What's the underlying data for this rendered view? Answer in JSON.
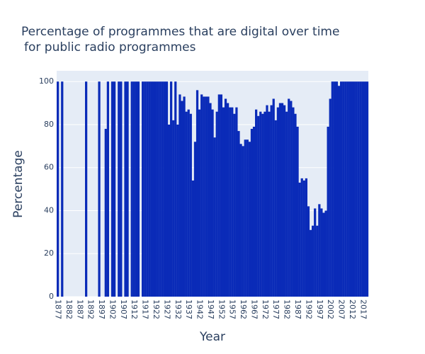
{
  "chart_data": {
    "type": "bar",
    "title": [
      "Percentage of programmes that are digital over time",
      "for public radio programmes"
    ],
    "x_label": "Year",
    "y_label": "Percentage",
    "color": "#0a2bb8",
    "grid": true,
    "x": [
      1877,
      1878,
      1879,
      1880,
      1881,
      1882,
      1883,
      1884,
      1885,
      1886,
      1887,
      1888,
      1889,
      1890,
      1891,
      1892,
      1893,
      1894,
      1895,
      1896,
      1897,
      1898,
      1899,
      1900,
      1901,
      1902,
      1903,
      1904,
      1905,
      1906,
      1907,
      1908,
      1909,
      1910,
      1911,
      1912,
      1913,
      1914,
      1915,
      1916,
      1917,
      1918,
      1919,
      1920,
      1921,
      1922,
      1923,
      1924,
      1925,
      1926,
      1927,
      1928,
      1929,
      1930,
      1931,
      1932,
      1933,
      1934,
      1935,
      1936,
      1937,
      1938,
      1939,
      1940,
      1941,
      1942,
      1943,
      1944,
      1945,
      1946,
      1947,
      1948,
      1949,
      1950,
      1951,
      1952,
      1953,
      1954,
      1955,
      1956,
      1957,
      1958,
      1959,
      1960,
      1961,
      1962,
      1963,
      1964,
      1965,
      1966,
      1967,
      1968,
      1969,
      1970,
      1971,
      1972,
      1973,
      1974,
      1975,
      1976,
      1977,
      1978,
      1979,
      1980,
      1981,
      1982,
      1983,
      1984,
      1985,
      1986,
      1987,
      1988,
      1989,
      1990,
      1991,
      1992,
      1993,
      1994,
      1995,
      1996,
      1997,
      1998,
      1999,
      2000,
      2001,
      2002,
      2003,
      2004,
      2005,
      2006,
      2007,
      2008,
      2009,
      2010,
      2011,
      2012,
      2013,
      2014,
      2015,
      2016,
      2017,
      2018,
      2019
    ],
    "values": [
      100,
      0,
      100,
      0,
      0,
      0,
      0,
      0,
      0,
      0,
      0,
      0,
      0,
      100,
      0,
      0,
      0,
      0,
      0,
      100,
      0,
      0,
      78,
      100,
      0,
      100,
      100,
      0,
      100,
      100,
      0,
      100,
      100,
      0,
      100,
      100,
      100,
      100,
      0,
      100,
      100,
      100,
      100,
      100,
      100,
      100,
      100,
      100,
      100,
      100,
      100,
      80,
      100,
      82,
      100,
      80,
      94,
      91,
      93,
      86,
      87,
      85,
      54,
      72,
      96,
      87,
      94,
      93,
      93,
      93,
      90,
      87,
      74,
      86,
      94,
      94,
      88,
      92,
      90,
      88,
      88,
      85,
      88,
      77,
      71,
      70,
      73,
      73,
      72,
      78,
      79,
      87,
      84,
      86,
      85,
      86,
      89,
      86,
      89,
      92,
      82,
      88,
      90,
      90,
      89,
      86,
      92,
      91,
      88,
      85,
      79,
      53,
      55,
      54,
      55,
      42,
      31,
      33,
      41,
      33,
      43,
      41,
      39,
      40,
      79,
      92,
      100,
      100,
      100,
      98,
      100,
      100,
      100,
      100,
      100,
      100,
      100,
      100,
      100,
      100,
      100,
      100,
      100
    ],
    "xlim": [
      1876.5,
      2019.5
    ],
    "xticks": [
      1877,
      1882,
      1887,
      1892,
      1897,
      1902,
      1907,
      1912,
      1917,
      1922,
      1927,
      1932,
      1937,
      1942,
      1947,
      1952,
      1957,
      1962,
      1967,
      1972,
      1977,
      1982,
      1987,
      1992,
      1997,
      2002,
      2007,
      2012,
      2017
    ],
    "ylim": [
      0,
      105
    ],
    "yticks": [
      0,
      20,
      40,
      60,
      80,
      100
    ]
  }
}
